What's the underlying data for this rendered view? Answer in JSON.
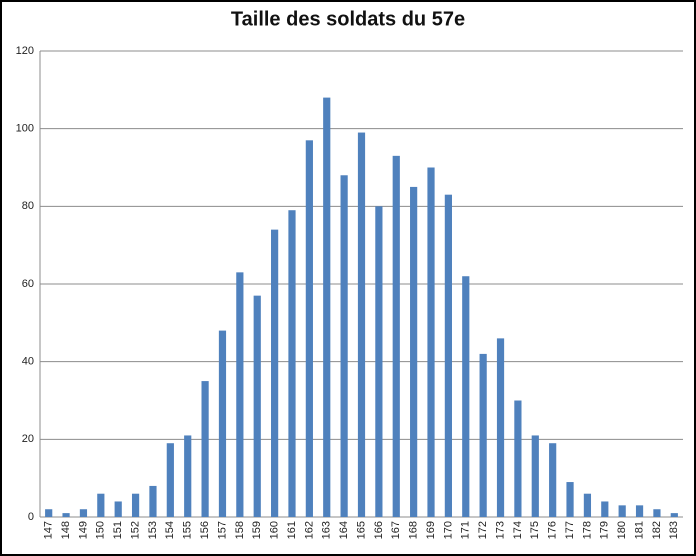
{
  "chart_data": {
    "type": "bar",
    "title": "Taille des soldats du 57e",
    "categories": [
      "147",
      "148",
      "149",
      "150",
      "151",
      "152",
      "153",
      "154",
      "155",
      "156",
      "157",
      "158",
      "159",
      "160",
      "161",
      "162",
      "163",
      "164",
      "165",
      "166",
      "167",
      "168",
      "169",
      "170",
      "171",
      "172",
      "173",
      "174",
      "175",
      "176",
      "177",
      "178",
      "179",
      "180",
      "181",
      "182",
      "183"
    ],
    "values": [
      2,
      1,
      2,
      6,
      4,
      6,
      8,
      19,
      21,
      35,
      48,
      63,
      57,
      74,
      79,
      97,
      108,
      88,
      99,
      80,
      93,
      85,
      90,
      83,
      62,
      42,
      46,
      30,
      21,
      19,
      9,
      6,
      4,
      3,
      3,
      2,
      1
    ],
    "color": "#4f81bd",
    "ylim": [
      0,
      120
    ],
    "yticks": [
      0,
      20,
      40,
      60,
      80,
      100,
      120
    ],
    "grid": true
  }
}
